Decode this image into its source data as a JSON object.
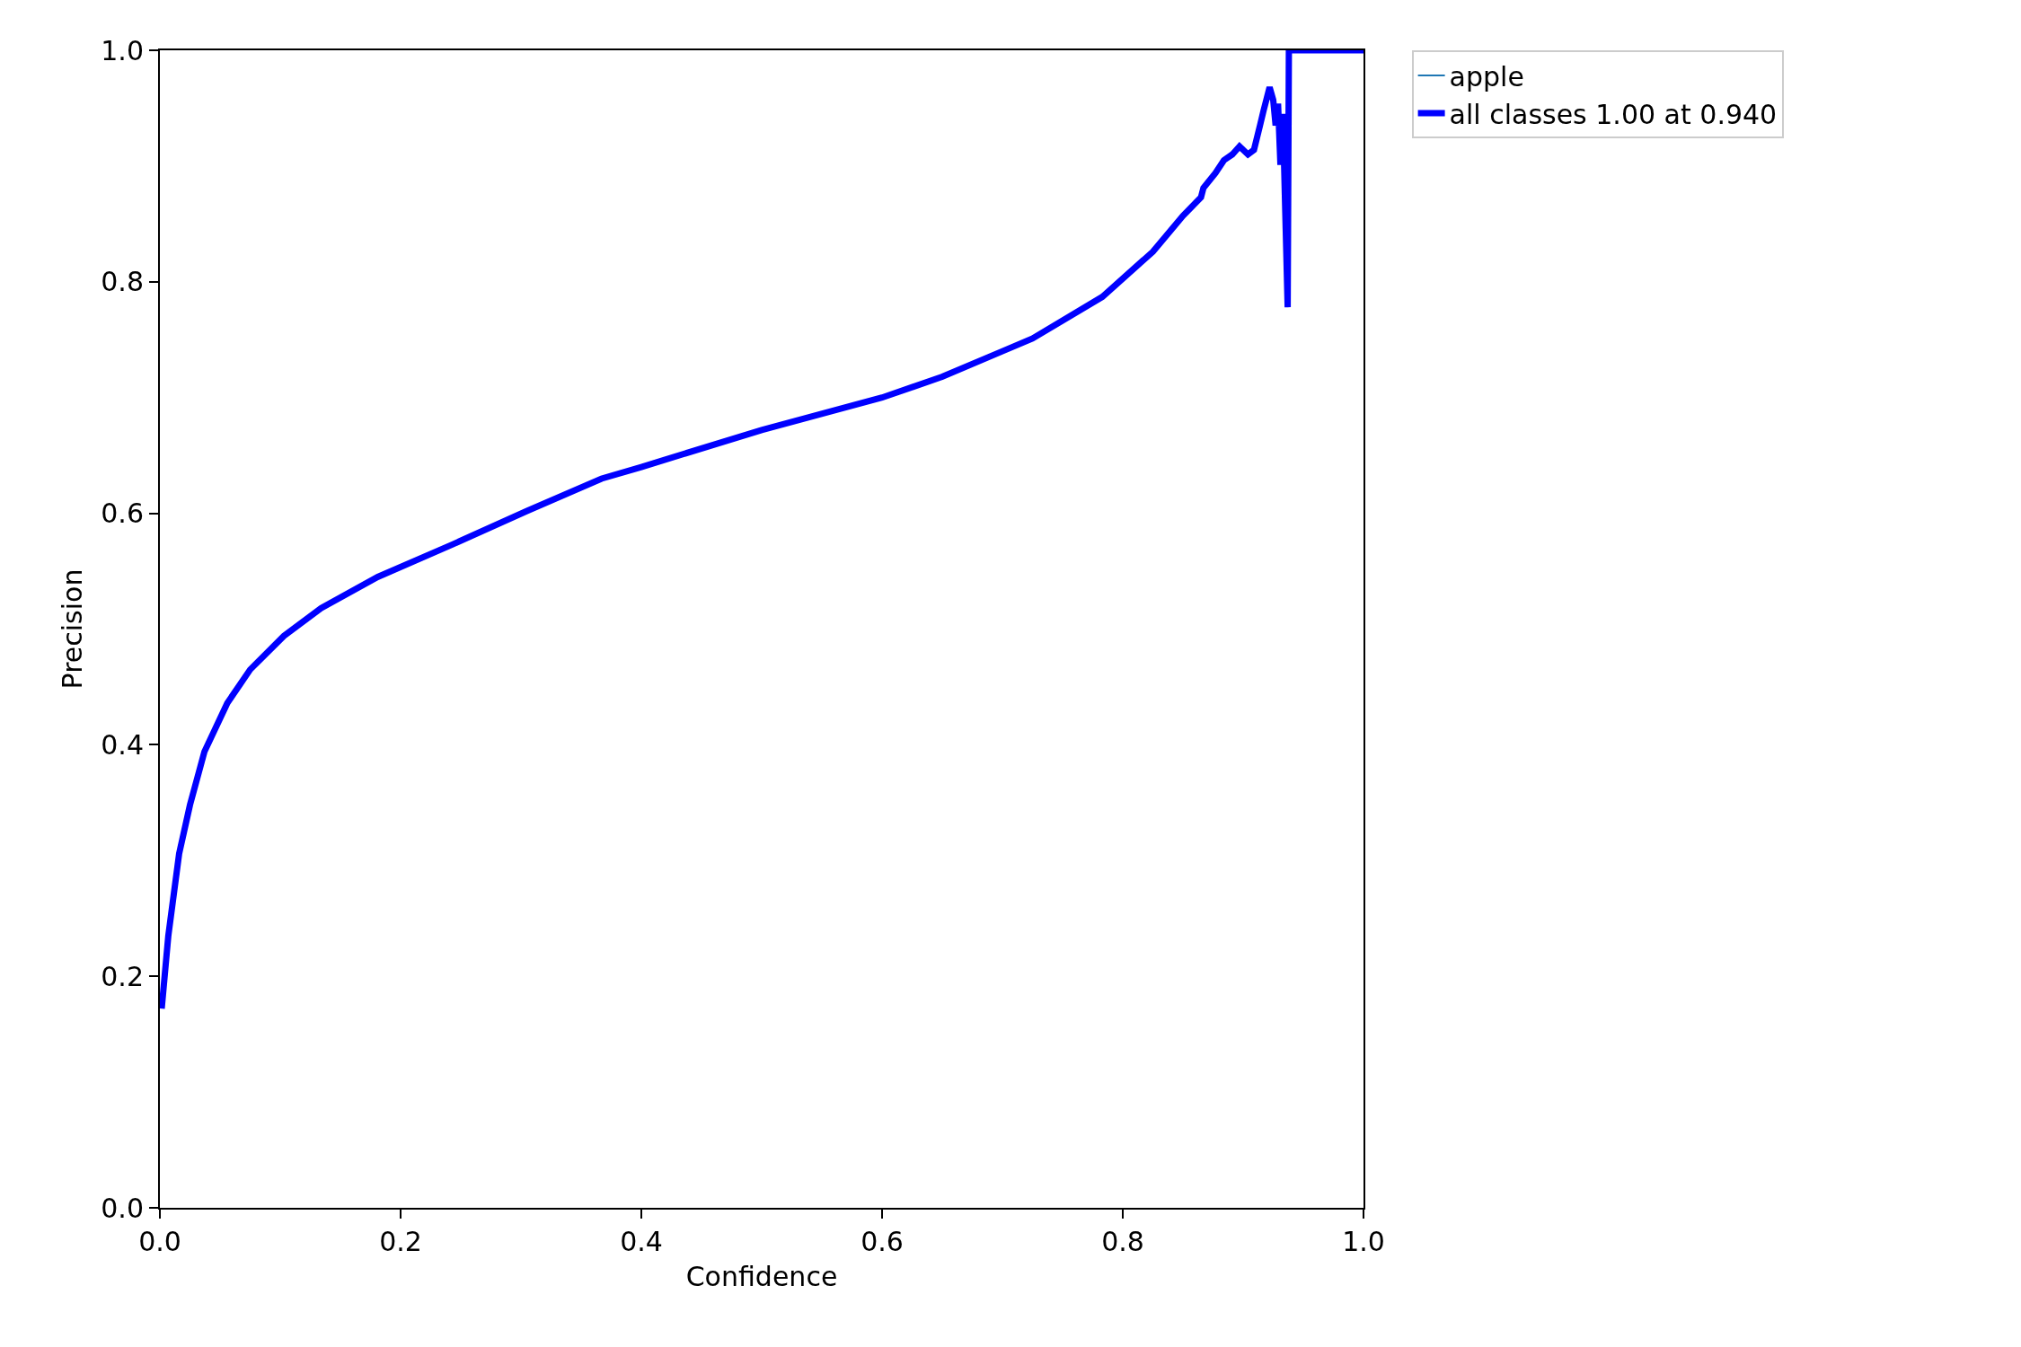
{
  "chart_data": {
    "type": "line",
    "xlabel": "Confidence",
    "ylabel": "Precision",
    "xlim": [
      0,
      1
    ],
    "ylim": [
      0,
      1
    ],
    "xticks": [
      {
        "value": 0,
        "label": "0.0"
      },
      {
        "value": 0.2,
        "label": "0.2"
      },
      {
        "value": 0.4,
        "label": "0.4"
      },
      {
        "value": 0.6,
        "label": "0.6"
      },
      {
        "value": 0.8,
        "label": "0.8"
      },
      {
        "value": 1,
        "label": "1.0"
      }
    ],
    "yticks": [
      {
        "value": 0,
        "label": "0.0"
      },
      {
        "value": 0.2,
        "label": "0.2"
      },
      {
        "value": 0.4,
        "label": "0.4"
      },
      {
        "value": 0.6,
        "label": "0.6"
      },
      {
        "value": 0.8,
        "label": "0.8"
      },
      {
        "value": 1,
        "label": "1.0"
      }
    ],
    "legend": "top right",
    "marker": "none",
    "line_style": "solid",
    "series": [
      {
        "name": "apple",
        "color": "#1f77b4"
      },
      {
        "name": "all classes 1.00 at 0.940",
        "color": "#0000ff",
        "x": [
          0.0015,
          0.007,
          0.016,
          0.025,
          0.037,
          0.056,
          0.075,
          0.103,
          0.134,
          0.181,
          0.243,
          0.305,
          0.367,
          0.4,
          0.5,
          0.6,
          0.65,
          0.7,
          0.725,
          0.783,
          0.825,
          0.85,
          0.865,
          0.867,
          0.877,
          0.884,
          0.891,
          0.897,
          0.904,
          0.909,
          0.914,
          0.917,
          0.922,
          0.925,
          0.927,
          0.929,
          0.931,
          0.933,
          0.937,
          0.938,
          1.0
        ],
        "values": [
          0.172,
          0.235,
          0.306,
          0.348,
          0.394,
          0.436,
          0.465,
          0.494,
          0.518,
          0.545,
          0.573,
          0.602,
          0.63,
          0.64,
          0.672,
          0.7,
          0.718,
          0.74,
          0.751,
          0.787,
          0.826,
          0.857,
          0.873,
          0.881,
          0.894,
          0.905,
          0.91,
          0.917,
          0.91,
          0.914,
          0.935,
          0.948,
          0.968,
          0.957,
          0.935,
          0.954,
          0.901,
          0.945,
          0.778,
          1.0,
          1.0
        ]
      }
    ]
  }
}
